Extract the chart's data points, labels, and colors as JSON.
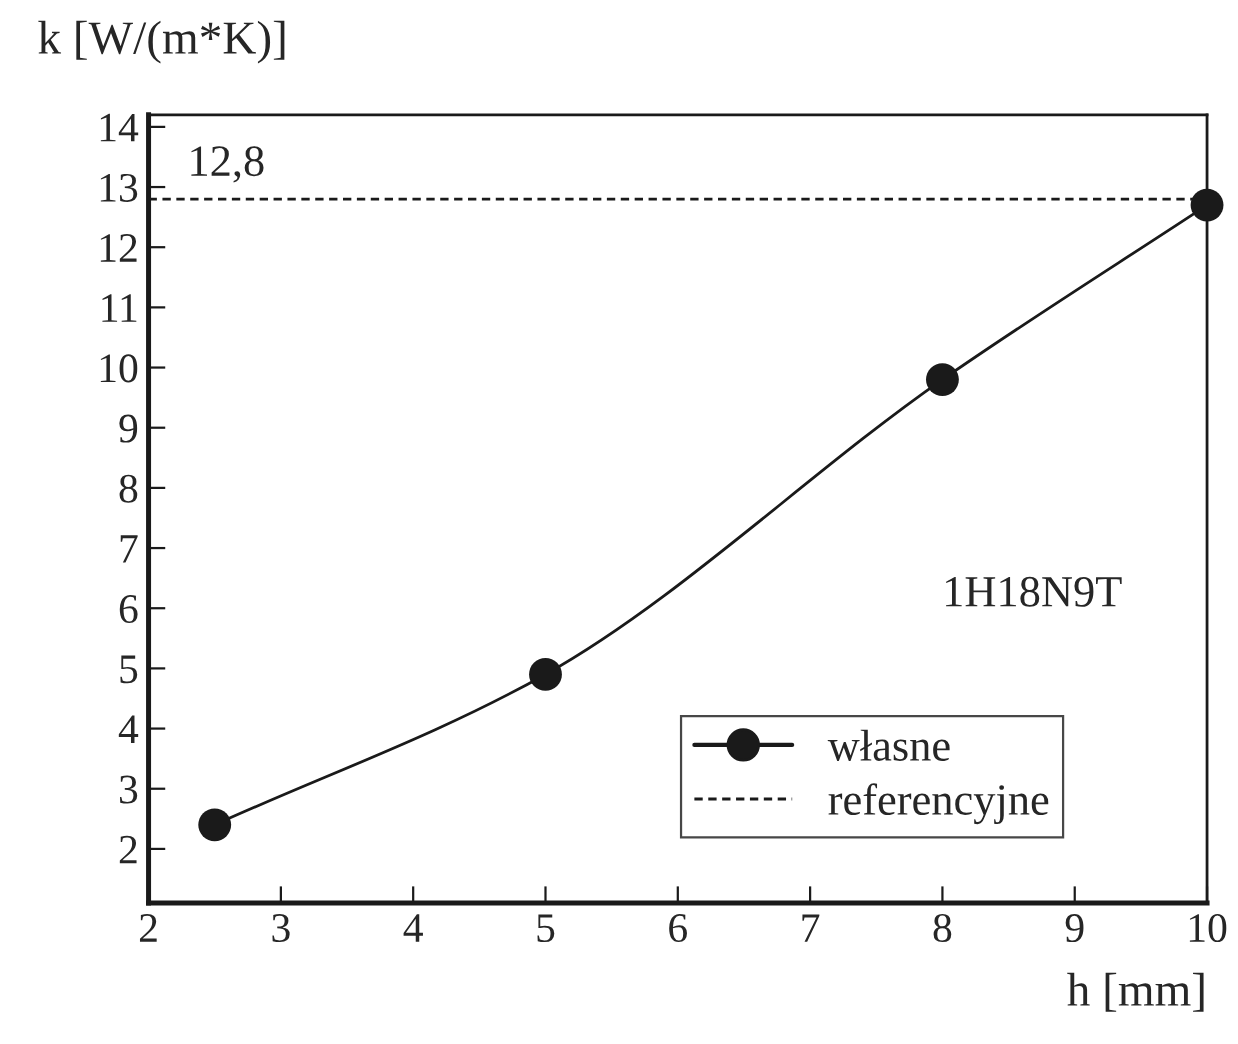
{
  "chart_data": {
    "type": "line",
    "xlabel": "h [mm]",
    "ylabel": "k [W/(m*K)]",
    "series": [
      {
        "name": "własne",
        "color": "#1a1a1a",
        "x": [
          2.5,
          5,
          8,
          10
        ],
        "values": [
          2.4,
          4.9,
          9.8,
          12.7
        ],
        "marker": "circle",
        "line_style": "solid"
      },
      {
        "name": "referencyjne",
        "color": "#1a1a1a",
        "x": [
          2,
          10
        ],
        "values": [
          12.8,
          12.8
        ],
        "marker": "none",
        "line_style": "dashed"
      }
    ],
    "annotations": [
      {
        "text": "12,8",
        "x": 2,
        "y": 12.8
      },
      "1H18N9T"
    ],
    "xlim": [
      2,
      10
    ],
    "xticks": [
      2,
      3,
      4,
      5,
      6,
      7,
      8,
      9,
      10
    ],
    "ylim": [
      1.1,
      14.2
    ],
    "yticks": [
      2,
      3,
      4,
      5,
      6,
      7,
      8,
      9,
      10,
      11,
      12,
      13,
      14
    ],
    "grid": false,
    "legend": "bottom right"
  }
}
